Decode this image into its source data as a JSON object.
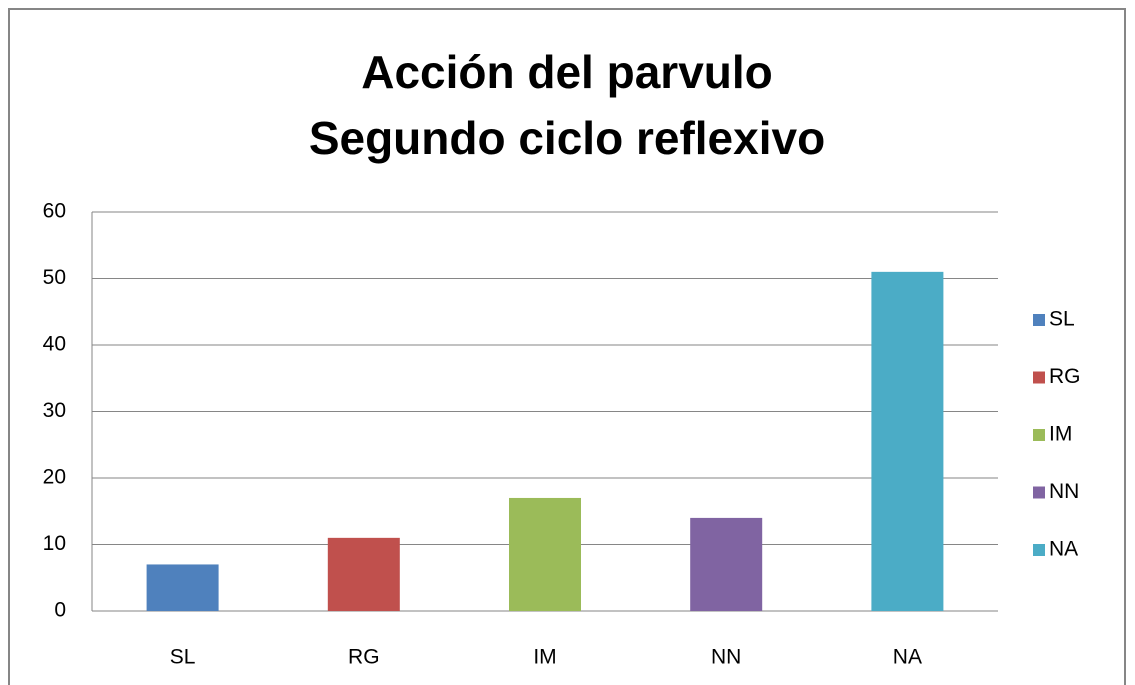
{
  "chart_data": {
    "type": "bar",
    "title": [
      "Acción del parvulo",
      "Segundo ciclo reflexivo"
    ],
    "categories": [
      "SL",
      "RG",
      "IM",
      "NN",
      "NA"
    ],
    "values": [
      7,
      11,
      17,
      14,
      51
    ],
    "colors": [
      "#4f81bd",
      "#c0504d",
      "#9bbb59",
      "#8064a2",
      "#4bacc6"
    ],
    "ylim": [
      0,
      60
    ],
    "yticks": [
      0,
      10,
      20,
      30,
      40,
      50,
      60
    ],
    "grid": true,
    "legend": "right"
  }
}
